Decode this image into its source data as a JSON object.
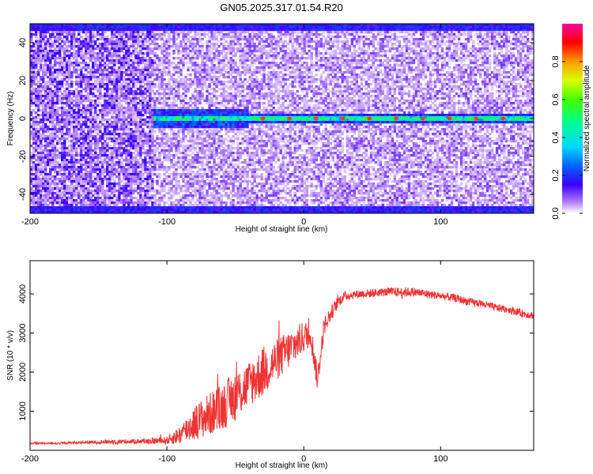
{
  "title": "GN05.2025.317.01.54.R20",
  "chart_data": [
    {
      "type": "heatmap",
      "xlabel": "Height of straight line (km)",
      "ylabel": "Frequency (Hz)",
      "xlim": [
        -200,
        168
      ],
      "ylim": [
        -50,
        50
      ],
      "x_ticks": [
        -200,
        -100,
        0,
        100
      ],
      "y_ticks": [
        -40,
        -20,
        0,
        20,
        40
      ],
      "grid": false,
      "colorbar": {
        "label": "Normalized spectral amplitude",
        "range": [
          0,
          1
        ],
        "ticks": [
          "0.0",
          "0.2",
          "0.4",
          "0.6",
          "0.8"
        ]
      },
      "features": {
        "carrier_line_freq_hz": 0,
        "carrier_visible_from_km": -110,
        "noise_dense_below_km": -110,
        "edge_bands_hz": [
          -48,
          48
        ]
      }
    },
    {
      "type": "line",
      "xlabel": "Height of straight line (km)",
      "ylabel": "SNR (10 * v/v)",
      "xlim": [
        -200,
        168
      ],
      "ylim": [
        0,
        4850
      ],
      "x_ticks": [
        -200,
        -100,
        0,
        100
      ],
      "y_ticks": [
        1000,
        2000,
        3000,
        4000
      ],
      "grid": false,
      "series": [
        {
          "color": "#f03232",
          "x": [
            -200,
            -180,
            -160,
            -140,
            -120,
            -100,
            -90,
            -80,
            -70,
            -60,
            -50,
            -40,
            -30,
            -20,
            -10,
            0,
            5,
            10,
            15,
            20,
            25,
            30,
            40,
            50,
            60,
            70,
            80,
            90,
            100,
            110,
            120,
            130,
            140,
            150,
            160,
            168
          ],
          "y": [
            180,
            180,
            200,
            220,
            230,
            250,
            400,
            700,
            900,
            1100,
            1400,
            1700,
            2000,
            2300,
            2600,
            2900,
            3000,
            1800,
            3200,
            3500,
            3800,
            3950,
            4000,
            4020,
            4050,
            4050,
            4050,
            4000,
            3950,
            3900,
            3800,
            3750,
            3650,
            3600,
            3500,
            3450
          ],
          "noise": [
            20,
            25,
            30,
            60,
            60,
            100,
            250,
            450,
            550,
            600,
            650,
            600,
            650,
            550,
            500,
            400,
            350,
            300,
            250,
            200,
            150,
            120,
            110,
            110,
            110,
            120,
            120,
            110,
            100,
            100,
            100,
            100,
            100,
            100,
            100,
            100
          ]
        }
      ]
    }
  ]
}
